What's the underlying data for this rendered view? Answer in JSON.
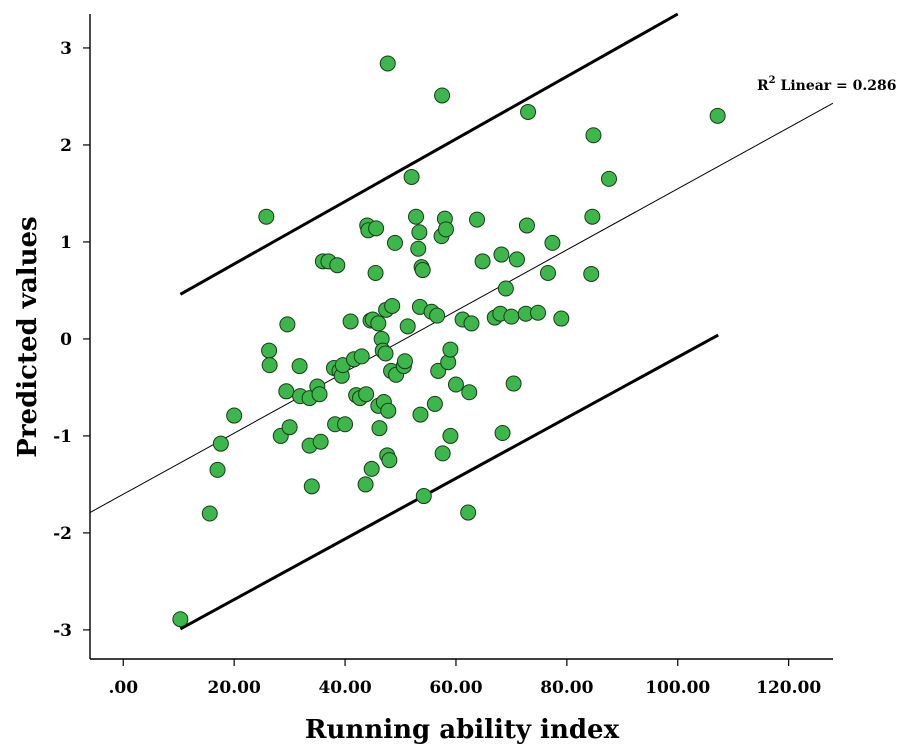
{
  "chart_data": {
    "type": "scatter",
    "title": "",
    "xlabel": "Running ability index",
    "ylabel": "Predicted values",
    "xlim": [
      -6,
      128
    ],
    "ylim": [
      -3.3,
      3.35
    ],
    "xticks": [
      0,
      20,
      40,
      60,
      80,
      100,
      120
    ],
    "xtick_labels": [
      ".00",
      "20.00",
      "40.00",
      "60.00",
      "80.00",
      "100.00",
      "120.00"
    ],
    "yticks": [
      -3,
      -2,
      -1,
      0,
      1,
      2,
      3
    ],
    "ytick_labels": [
      "-3",
      "-2",
      "-1",
      "0",
      "1",
      "2",
      "3"
    ],
    "grid": false,
    "annotation": {
      "prefix": "R",
      "superscript": "2",
      "suffix": " Linear = 0.286"
    },
    "colors": {
      "point_fill": "#3cb84a",
      "point_stroke": "#1a3a1a",
      "line": "#000000"
    },
    "fit_line": {
      "x": [
        -6,
        128
      ],
      "y": [
        -1.79,
        2.43
      ]
    },
    "prediction_bands": [
      {
        "name": "upper",
        "x": [
          10.3,
          100.0
        ],
        "y": [
          0.46,
          3.35
        ]
      },
      {
        "name": "lower",
        "x": [
          10.3,
          107.3
        ],
        "y": [
          -2.99,
          0.04
        ]
      }
    ],
    "points": [
      [
        10.3,
        -2.89
      ],
      [
        15.6,
        -1.8
      ],
      [
        17.0,
        -1.35
      ],
      [
        17.6,
        -1.08
      ],
      [
        20.0,
        -0.79
      ],
      [
        25.8,
        1.26
      ],
      [
        26.3,
        -0.12
      ],
      [
        26.4,
        -0.27
      ],
      [
        28.4,
        -1.0
      ],
      [
        29.4,
        -0.54
      ],
      [
        29.6,
        0.15
      ],
      [
        30.0,
        -0.91
      ],
      [
        31.8,
        -0.28
      ],
      [
        31.9,
        -0.59
      ],
      [
        33.6,
        -1.1
      ],
      [
        33.6,
        -0.61
      ],
      [
        34.0,
        -1.52
      ],
      [
        35.0,
        -0.49
      ],
      [
        35.4,
        -0.57
      ],
      [
        35.6,
        -1.06
      ],
      [
        36.0,
        0.8
      ],
      [
        37.0,
        0.8
      ],
      [
        38.0,
        -0.3
      ],
      [
        38.2,
        -0.88
      ],
      [
        38.6,
        0.76
      ],
      [
        39.0,
        -0.33
      ],
      [
        39.4,
        -0.38
      ],
      [
        39.6,
        -0.27
      ],
      [
        40.0,
        -0.88
      ],
      [
        41.0,
        0.18
      ],
      [
        41.6,
        -0.21
      ],
      [
        42.0,
        -0.58
      ],
      [
        42.7,
        -0.61
      ],
      [
        43.0,
        -0.18
      ],
      [
        43.7,
        -1.5
      ],
      [
        43.8,
        -0.57
      ],
      [
        44.0,
        1.17
      ],
      [
        44.2,
        1.12
      ],
      [
        44.6,
        0.19
      ],
      [
        44.8,
        -1.34
      ],
      [
        45.0,
        0.2
      ],
      [
        45.5,
        0.68
      ],
      [
        45.6,
        1.14
      ],
      [
        46.0,
        -0.69
      ],
      [
        46.0,
        0.16
      ],
      [
        46.2,
        -0.92
      ],
      [
        46.6,
        0.0
      ],
      [
        46.8,
        -0.12
      ],
      [
        47.0,
        -0.65
      ],
      [
        47.3,
        -0.15
      ],
      [
        47.4,
        0.3
      ],
      [
        47.6,
        -1.2
      ],
      [
        47.7,
        2.84
      ],
      [
        47.8,
        -0.74
      ],
      [
        48.0,
        -1.25
      ],
      [
        48.3,
        -0.33
      ],
      [
        48.5,
        0.34
      ],
      [
        49.0,
        0.99
      ],
      [
        49.2,
        -0.37
      ],
      [
        50.6,
        -0.28
      ],
      [
        50.8,
        -0.23
      ],
      [
        51.3,
        0.13
      ],
      [
        52.0,
        1.67
      ],
      [
        52.8,
        1.26
      ],
      [
        53.2,
        0.93
      ],
      [
        53.4,
        1.1
      ],
      [
        53.5,
        0.33
      ],
      [
        53.6,
        -0.78
      ],
      [
        53.8,
        0.74
      ],
      [
        54.0,
        0.71
      ],
      [
        54.2,
        -1.62
      ],
      [
        55.6,
        0.28
      ],
      [
        56.2,
        -0.67
      ],
      [
        56.6,
        0.24
      ],
      [
        56.8,
        -0.33
      ],
      [
        57.4,
        1.06
      ],
      [
        57.5,
        2.51
      ],
      [
        57.6,
        -1.18
      ],
      [
        58.0,
        1.24
      ],
      [
        58.2,
        1.13
      ],
      [
        58.6,
        -0.24
      ],
      [
        59.0,
        -0.11
      ],
      [
        59.0,
        -1.0
      ],
      [
        60.0,
        -0.47
      ],
      [
        61.2,
        0.2
      ],
      [
        62.2,
        -1.79
      ],
      [
        62.4,
        -0.55
      ],
      [
        62.8,
        0.16
      ],
      [
        63.8,
        1.23
      ],
      [
        64.8,
        0.8
      ],
      [
        67.0,
        0.22
      ],
      [
        68.0,
        0.26
      ],
      [
        68.2,
        0.87
      ],
      [
        68.4,
        -0.97
      ],
      [
        69.0,
        0.52
      ],
      [
        70.0,
        0.23
      ],
      [
        70.4,
        -0.46
      ],
      [
        71.0,
        0.82
      ],
      [
        72.6,
        0.26
      ],
      [
        72.8,
        1.17
      ],
      [
        73.0,
        2.34
      ],
      [
        74.8,
        0.27
      ],
      [
        76.6,
        0.68
      ],
      [
        77.4,
        0.99
      ],
      [
        79.0,
        0.21
      ],
      [
        84.4,
        0.67
      ],
      [
        84.6,
        1.26
      ],
      [
        84.8,
        2.1
      ],
      [
        87.6,
        1.65
      ],
      [
        107.2,
        2.3
      ]
    ]
  }
}
